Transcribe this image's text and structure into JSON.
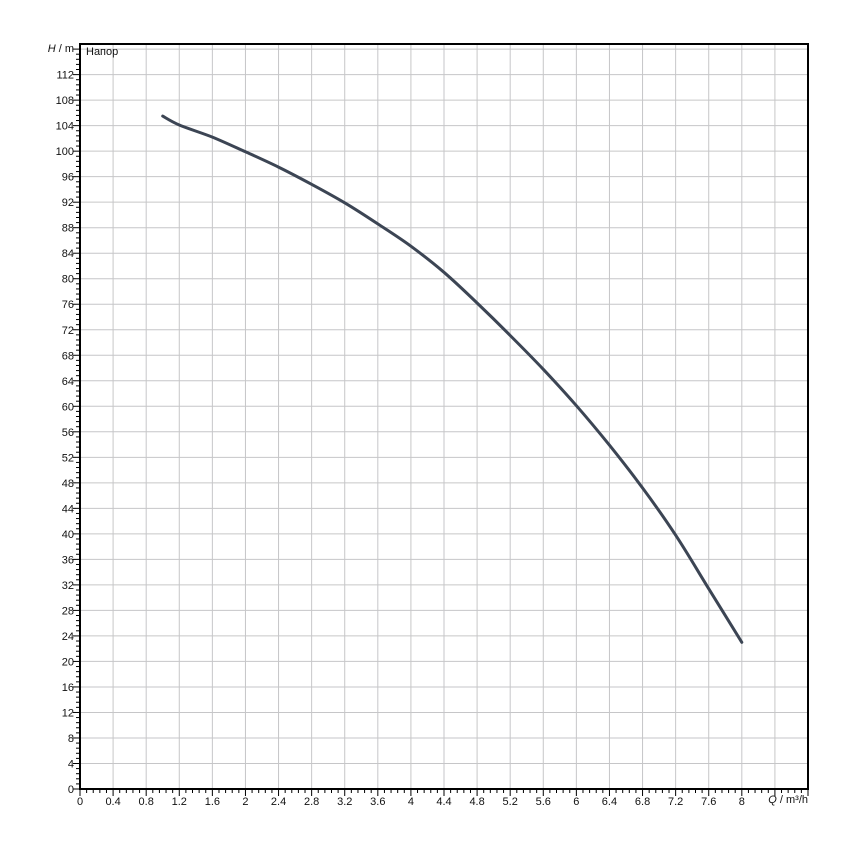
{
  "title_label": "Напор",
  "axis_labels": {
    "y_symbol": "H",
    "y_unit": " / m",
    "x_symbol": "Q",
    "x_unit": " / m³/h"
  },
  "colors": {
    "background": "#ffffff",
    "frame": "#000000",
    "grid": "#c6c6c8",
    "tick": "#000000",
    "tick_label": "#111111",
    "curve": "#3c4554"
  },
  "chart_data": {
    "type": "line",
    "title": "Напор",
    "xlabel": "Q / m³/h",
    "ylabel": "H / m",
    "x_range": [
      0,
      8.8
    ],
    "y_range": [
      0,
      116.8
    ],
    "x_major_step": 0.4,
    "y_major_step": 4,
    "x_minor_step": 0.08,
    "y_minor_step": 0.8,
    "grid": "major-both",
    "legend": "none",
    "x_tick_values": [
      0,
      0.4,
      0.8,
      1.2,
      1.6,
      2,
      2.4,
      2.8,
      3.2,
      3.6,
      4,
      4.4,
      4.8,
      5.2,
      5.6,
      6,
      6.4,
      6.8,
      7.2,
      7.6,
      8
    ],
    "x_tick_labels": [
      "0",
      "0.4",
      "0.8",
      "1.2",
      "1.6",
      "2",
      "2.4",
      "2.8",
      "3.2",
      "3.6",
      "4",
      "4.4",
      "4.8",
      "5.2",
      "5.6",
      "6",
      "6.4",
      "6.8",
      "7.2",
      "7.6",
      "8"
    ],
    "y_tick_values": [
      0,
      4,
      8,
      12,
      16,
      20,
      24,
      28,
      32,
      36,
      40,
      44,
      48,
      52,
      56,
      60,
      64,
      68,
      72,
      76,
      80,
      84,
      88,
      92,
      96,
      100,
      104,
      108,
      112
    ],
    "y_tick_labels": [
      "0",
      "4",
      "8",
      "12",
      "16",
      "20",
      "24",
      "28",
      "32",
      "36",
      "40",
      "44",
      "48",
      "52",
      "56",
      "60",
      "64",
      "68",
      "72",
      "76",
      "80",
      "84",
      "88",
      "92",
      "96",
      "100",
      "104",
      "108",
      "112"
    ],
    "series": [
      {
        "name": "Напор",
        "color": "#3c4554",
        "points": [
          [
            1.0,
            105.5
          ],
          [
            1.2,
            104.1
          ],
          [
            1.6,
            102.2
          ],
          [
            2.0,
            99.9
          ],
          [
            2.4,
            97.5
          ],
          [
            2.8,
            94.8
          ],
          [
            3.2,
            91.9
          ],
          [
            3.6,
            88.6
          ],
          [
            4.0,
            85.1
          ],
          [
            4.4,
            81.0
          ],
          [
            4.8,
            76.2
          ],
          [
            5.2,
            71.1
          ],
          [
            5.6,
            65.8
          ],
          [
            6.0,
            60.1
          ],
          [
            6.4,
            53.9
          ],
          [
            6.8,
            47.2
          ],
          [
            7.2,
            39.8
          ],
          [
            7.6,
            31.4
          ],
          [
            8.0,
            23.0
          ]
        ]
      }
    ]
  }
}
